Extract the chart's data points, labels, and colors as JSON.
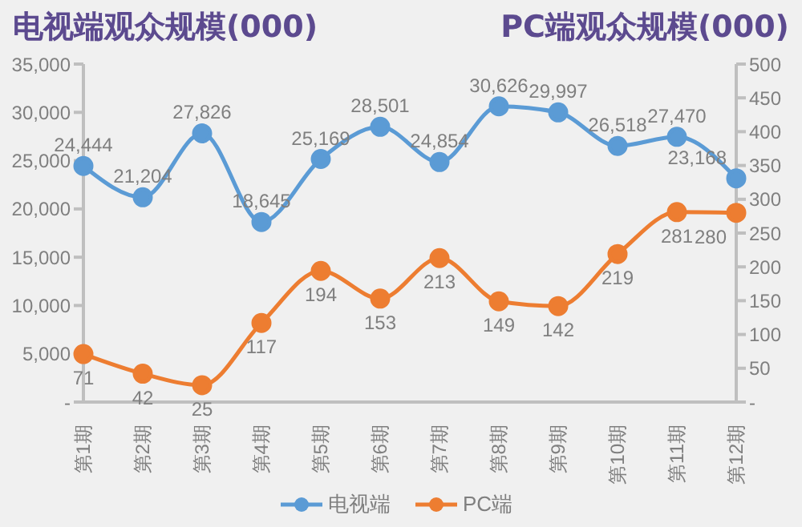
{
  "chart_data": {
    "type": "line",
    "ylabel": "电视端观众规模(000)",
    "y2label": "PC端观众规模(000)",
    "categories": [
      "第1期",
      "第2期",
      "第3期",
      "第4期",
      "第5期",
      "第6期",
      "第7期",
      "第8期",
      "第9期",
      "第10期",
      "第11期",
      "第12期"
    ],
    "series": [
      {
        "name": "电视端",
        "color": "#5b9bd5",
        "values": [
          24444,
          21204,
          27826,
          18645,
          25169,
          28501,
          24854,
          30626,
          29997,
          26518,
          27470,
          23168
        ],
        "value_labels": [
          "24,444",
          "21,204",
          "27,826",
          "18,645",
          "25,169",
          "28,501",
          "24,854",
          "30,626",
          "29,997",
          "26,518",
          "27,470",
          "23,168"
        ]
      },
      {
        "name": "PC端",
        "color": "#ed7d31",
        "axis": "y2",
        "values": [
          71,
          42,
          25,
          117,
          194,
          153,
          213,
          149,
          142,
          219,
          281,
          280
        ],
        "value_labels": [
          "71",
          "42",
          "25",
          "117",
          "194",
          "153",
          "213",
          "149",
          "142",
          "219",
          "281",
          "280"
        ]
      }
    ],
    "ylim": [
      0,
      35000
    ],
    "yticks": [
      {
        "value": 0,
        "label": "-"
      },
      {
        "value": 5000,
        "label": "5,000"
      },
      {
        "value": 10000,
        "label": "10,000"
      },
      {
        "value": 15000,
        "label": "15,000"
      },
      {
        "value": 20000,
        "label": "20,000"
      },
      {
        "value": 25000,
        "label": "25,000"
      },
      {
        "value": 30000,
        "label": "30,000"
      },
      {
        "value": 35000,
        "label": "35,000"
      }
    ],
    "y2lim": [
      0,
      500
    ],
    "y2ticks": [
      {
        "value": 0,
        "label": "-"
      },
      50,
      100,
      150,
      200,
      250,
      300,
      350,
      400,
      450,
      500
    ],
    "marker": "circle",
    "grid": false,
    "legend": "bottom"
  }
}
